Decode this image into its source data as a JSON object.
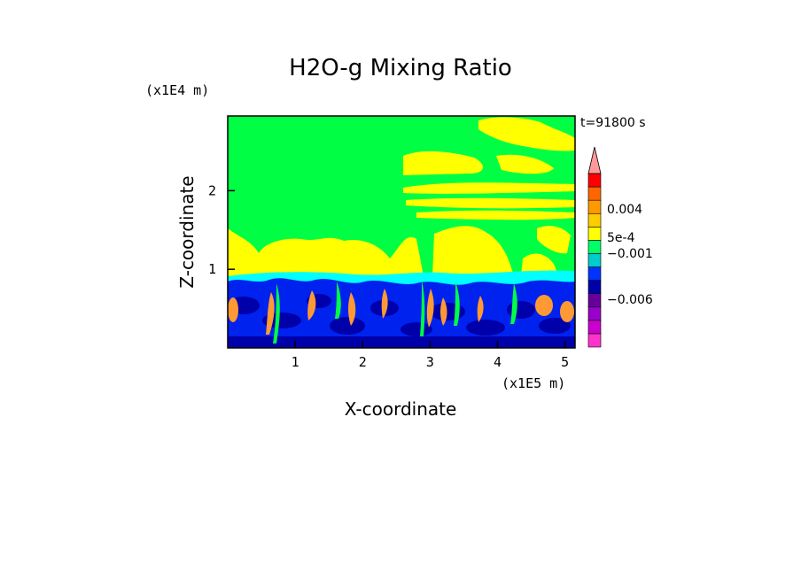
{
  "chart_data": {
    "type": "heatmap",
    "title": "H2O-g Mixing Ratio",
    "xlabel": "X-coordinate",
    "ylabel": "Z-coordinate",
    "x_unit": "(x1E5 m)",
    "y_unit": "(x1E4 m)",
    "time_label": "t=91800 s",
    "xlim": [
      0,
      5.15
    ],
    "ylim": [
      0,
      2.95
    ],
    "x_ticks": [
      1,
      2,
      3,
      4,
      5
    ],
    "y_ticks": [
      1,
      2
    ],
    "colorbar": {
      "labels": [
        {
          "text": "0.004",
          "value": 0.004
        },
        {
          "text": "5e-4",
          "value": 0.0005
        },
        {
          "text": "−0.001",
          "value": -0.001
        },
        {
          "text": "−0.006",
          "value": -0.006
        }
      ],
      "levels": [
        {
          "color": "#ff33cc"
        },
        {
          "color": "#cc00cc"
        },
        {
          "color": "#9900cc"
        },
        {
          "color": "#660099"
        },
        {
          "color": "#0000aa"
        },
        {
          "color": "#0033ff"
        },
        {
          "color": "#00cccc"
        },
        {
          "color": "#00ff66"
        },
        {
          "color": "#ffff00"
        },
        {
          "color": "#ffcc00"
        },
        {
          "color": "#ff9900"
        },
        {
          "color": "#ff6600"
        },
        {
          "color": "#ff0000"
        },
        {
          "color": "#ff9999"
        }
      ],
      "extend_top": true
    },
    "regions": [
      {
        "name": "upper-green-background",
        "color": "#00ff44"
      },
      {
        "name": "yellow-cloud-layers",
        "color": "#ffff00"
      },
      {
        "name": "cyan-transition-band",
        "color": "#00ffff"
      },
      {
        "name": "blue-boundary-layer",
        "color": "#0022ee"
      },
      {
        "name": "dark-blue-cores",
        "color": "#0000aa"
      },
      {
        "name": "orange-plumes",
        "color": "#ff9933"
      }
    ]
  }
}
